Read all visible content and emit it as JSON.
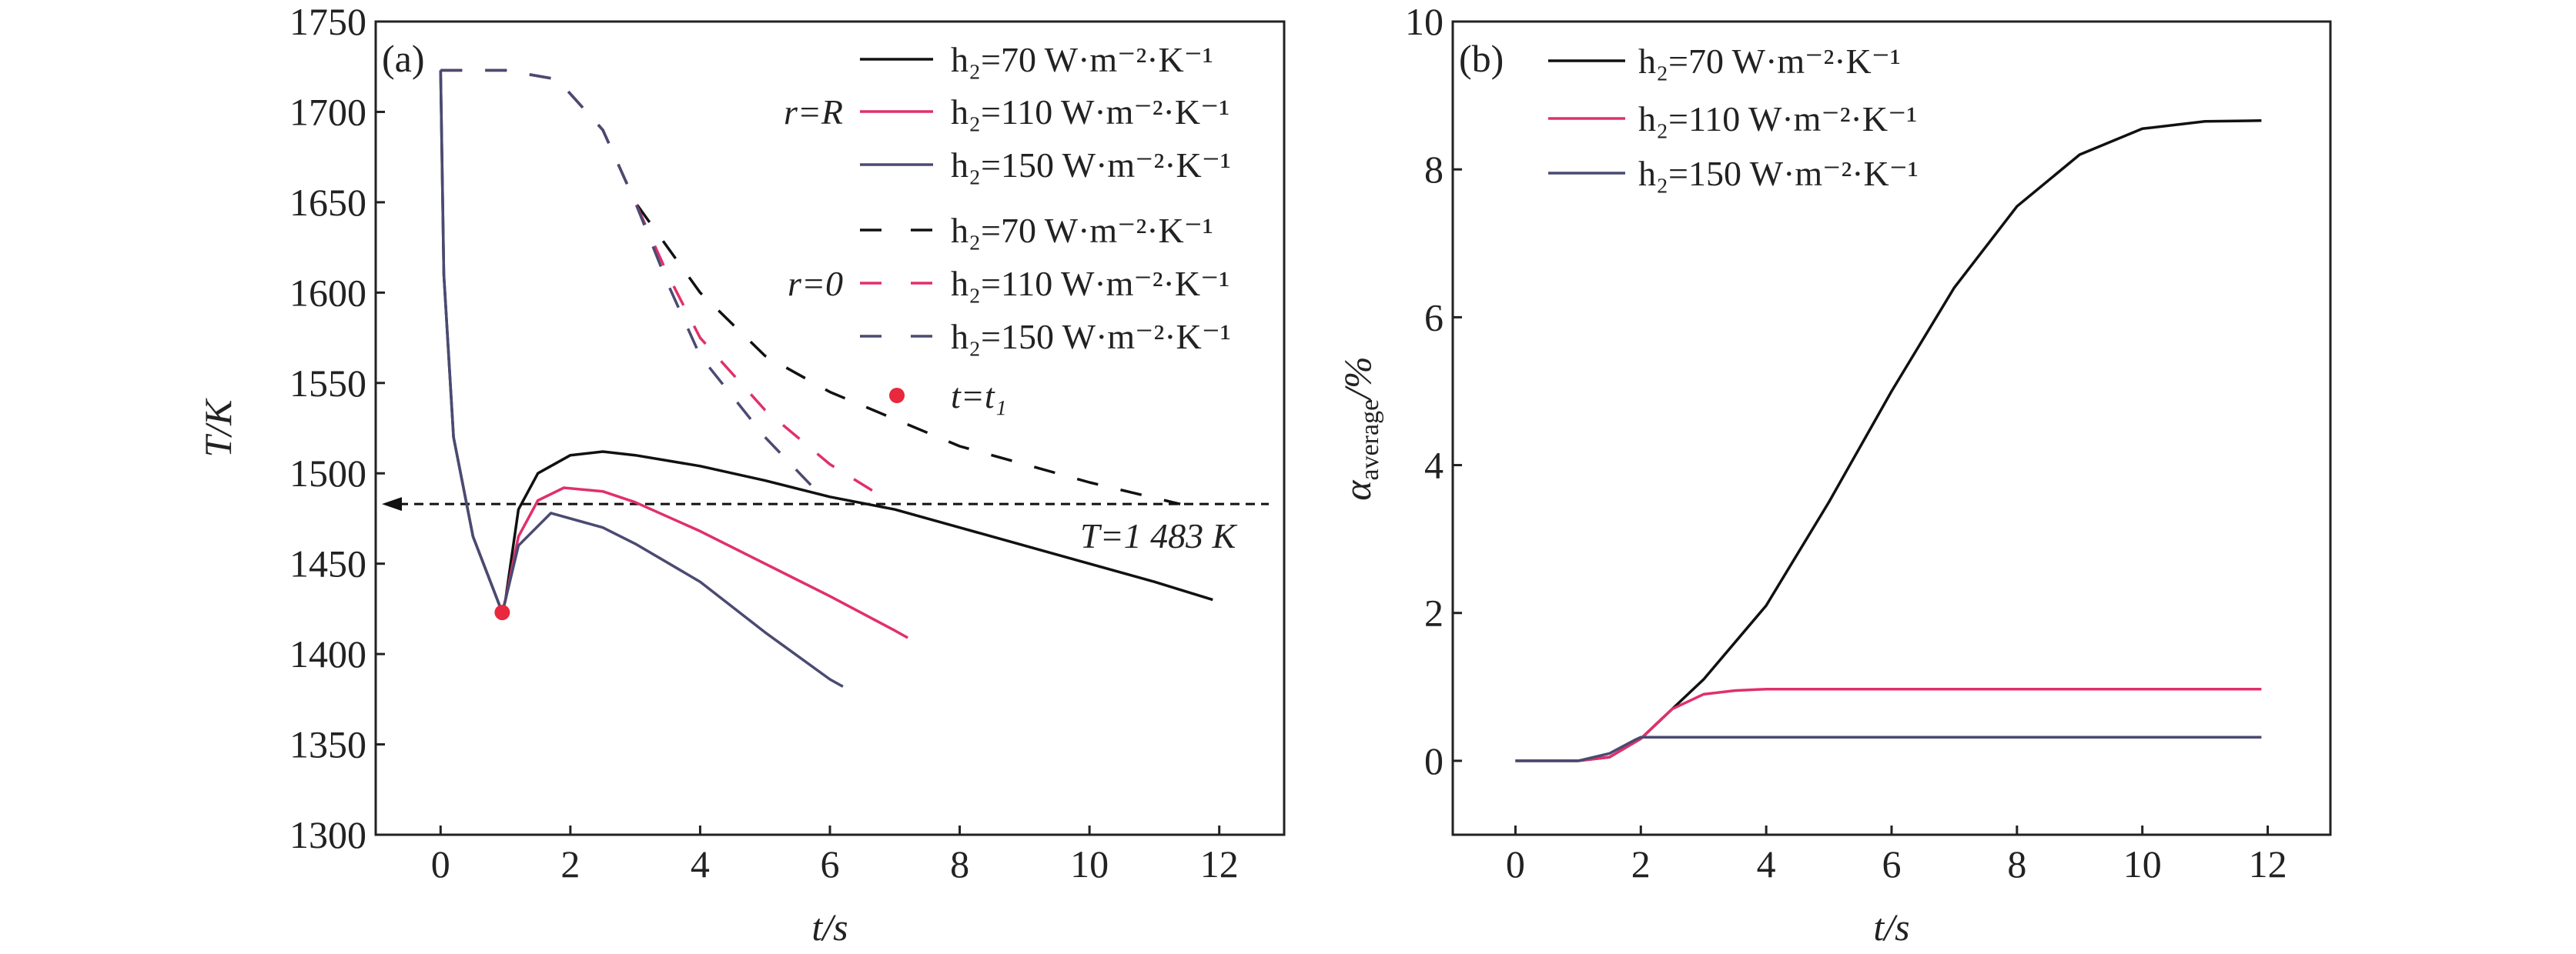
{
  "chart_data": [
    {
      "type": "line",
      "panel_label": "(a)",
      "xlabel": "t/s",
      "ylabel": "T/K",
      "xlim": [
        -1,
        13
      ],
      "ylim": [
        1300,
        1750
      ],
      "xticks": [
        0,
        2,
        4,
        6,
        8,
        10,
        12
      ],
      "yticks": [
        1300,
        1350,
        1400,
        1450,
        1500,
        1550,
        1600,
        1650,
        1700,
        1750
      ],
      "legend_groups": [
        {
          "label": "r=R",
          "style": "solid"
        },
        {
          "label": "r=0",
          "style": "dashed"
        }
      ],
      "series": [
        {
          "name": "h₂=70 W·m⁻²·K⁻¹",
          "group": "r=R",
          "color": "#111111",
          "dash": false,
          "x": [
            0,
            0.05,
            0.2,
            0.5,
            0.95,
            1.0,
            1.2,
            1.5,
            2,
            2.5,
            3,
            4,
            5,
            6,
            7,
            8,
            9,
            10,
            11,
            11.9
          ],
          "y": [
            1723,
            1610,
            1520,
            1465,
            1423,
            1430,
            1480,
            1500,
            1510,
            1512,
            1510,
            1504,
            1496,
            1487,
            1480,
            1470,
            1460,
            1450,
            1440,
            1430
          ]
        },
        {
          "name": "h₂=110 W·m⁻²·K⁻¹",
          "group": "r=R",
          "color": "#e0306a",
          "dash": false,
          "x": [
            0.95,
            1.0,
            1.2,
            1.5,
            1.9,
            2.5,
            3,
            4,
            5,
            6,
            7,
            7.2
          ],
          "y": [
            1423,
            1430,
            1465,
            1485,
            1492,
            1490,
            1484,
            1468,
            1450,
            1432,
            1413,
            1409
          ]
        },
        {
          "name": "h₂=150 W·m⁻²·K⁻¹",
          "group": "r=R",
          "color": "#4a4a72",
          "dash": false,
          "x": [
            0,
            0.05,
            0.2,
            0.5,
            0.95,
            1.0,
            1.2,
            1.7,
            2.5,
            3,
            4,
            5,
            6,
            6.2
          ],
          "y": [
            1723,
            1610,
            1520,
            1465,
            1423,
            1430,
            1460,
            1478,
            1470,
            1461,
            1440,
            1412,
            1386,
            1382
          ]
        },
        {
          "name": "h₂=70 W·m⁻²·K⁻¹",
          "group": "r=0",
          "color": "#111111",
          "dash": true,
          "x": [
            0,
            1,
            1.8,
            2.5,
            3,
            4,
            5,
            6,
            7,
            8,
            9,
            10,
            11.4
          ],
          "y": [
            1723,
            1723,
            1718,
            1690,
            1650,
            1600,
            1565,
            1545,
            1530,
            1515,
            1505,
            1495,
            1483
          ]
        },
        {
          "name": "h₂=110 W·m⁻²·K⁻¹",
          "group": "r=0",
          "color": "#e0306a",
          "dash": true,
          "x": [
            0,
            1,
            1.8,
            2.5,
            3,
            3.5,
            4,
            5,
            6,
            6.9
          ],
          "y": [
            1723,
            1723,
            1718,
            1690,
            1650,
            1610,
            1575,
            1535,
            1505,
            1485
          ]
        },
        {
          "name": "h₂=150 W·m⁻²·K⁻¹",
          "group": "r=0",
          "color": "#4a4a72",
          "dash": true,
          "x": [
            0,
            1,
            1.8,
            2.5,
            3,
            3.5,
            4,
            5,
            5.8
          ],
          "y": [
            1723,
            1723,
            1718,
            1690,
            1650,
            1605,
            1565,
            1520,
            1490
          ]
        }
      ],
      "markers": [
        {
          "x": 0.95,
          "y": 1423,
          "color": "#e8283c"
        }
      ],
      "marker_legend": "t=t₁",
      "reference_line": {
        "y": 1483,
        "label": "T=1 483 K"
      }
    },
    {
      "type": "line",
      "panel_label": "(b)",
      "xlabel": "t/s",
      "ylabel": "α_average/%",
      "ylabel_main": "α",
      "ylabel_sub": "average",
      "ylabel_unit": "/%",
      "xlim": [
        -1,
        13
      ],
      "ylim": [
        -1,
        10
      ],
      "xticks": [
        0,
        2,
        4,
        6,
        8,
        10,
        12
      ],
      "yticks": [
        0,
        2,
        4,
        6,
        8,
        10
      ],
      "series": [
        {
          "name": "h₂=70 W·m⁻²·K⁻¹",
          "color": "#111111",
          "x": [
            0,
            1,
            1.5,
            2,
            2.5,
            3,
            4,
            5,
            6,
            7,
            8,
            9,
            10,
            11,
            11.9
          ],
          "y": [
            0,
            0,
            0.05,
            0.3,
            0.7,
            1.1,
            2.1,
            3.5,
            5.0,
            6.4,
            7.5,
            8.2,
            8.55,
            8.65,
            8.66
          ]
        },
        {
          "name": "h₂=110 W·m⁻²·K⁻¹",
          "color": "#e0306a",
          "x": [
            0,
            1,
            1.5,
            2,
            2.5,
            3,
            3.5,
            4,
            11.9
          ],
          "y": [
            0,
            0,
            0.05,
            0.3,
            0.7,
            0.9,
            0.95,
            0.97,
            0.97
          ]
        },
        {
          "name": "h₂=150 W·m⁻²·K⁻¹",
          "color": "#4a4a72",
          "x": [
            0,
            1,
            1.5,
            1.9,
            2,
            11.9
          ],
          "y": [
            0,
            0,
            0.1,
            0.28,
            0.32,
            0.32
          ]
        }
      ]
    }
  ]
}
